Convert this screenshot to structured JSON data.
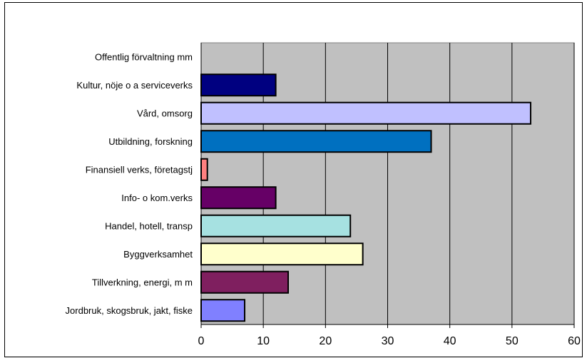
{
  "chart_data": {
    "type": "bar",
    "orientation": "horizontal",
    "categories": [
      "Offentlig förvaltning mm",
      "Kultur, nöje o a serviceverks",
      "Vård, omsorg",
      "Utbildning, forskning",
      "Finansiell verks, företagstj",
      "Info- o kom.verks",
      "Handel, hotell, transp",
      "Byggverksamhet",
      "Tillverkning, energi, m m",
      "Jordbruk, skogsbruk, jakt, fiske"
    ],
    "values": [
      0,
      12,
      53,
      37,
      1,
      12,
      24,
      26,
      14,
      7
    ],
    "colors": [
      "#000080",
      "#000080",
      "#C0C0FF",
      "#0070C0",
      "#FF8080",
      "#660066",
      "#A6E1E1",
      "#FFFFCC",
      "#7F1F5F",
      "#8080FF"
    ],
    "xlim": [
      0,
      60
    ],
    "xticks": [
      0,
      10,
      20,
      30,
      40,
      50,
      60
    ],
    "plot_background": "#C0C0C0",
    "grid": true,
    "legend": "none"
  }
}
